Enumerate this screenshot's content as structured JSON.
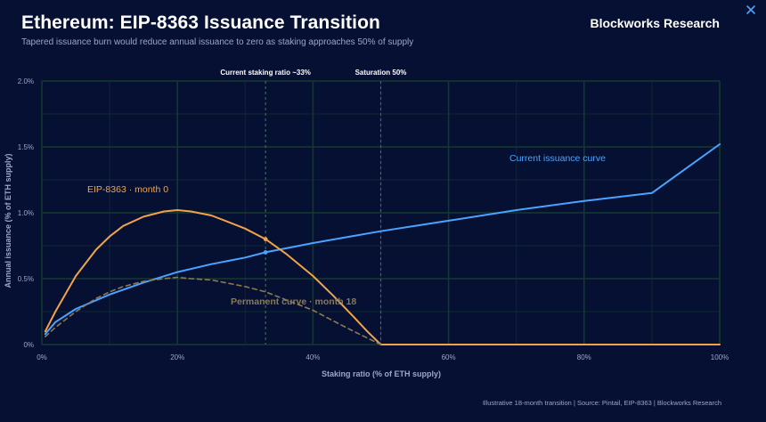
{
  "header": {
    "title": "Ethereum: EIP-8363 Issuance Transition",
    "subtitle": "Tapered issuance burn would reduce annual issuance to zero as staking approaches 50% of supply",
    "brand": "Blockworks Research"
  },
  "footer": {
    "note": "Illustrative 18-month transition | Source: Pintail, EIP-8363 | Blockworks Research"
  },
  "colors": {
    "background": "#061033",
    "grid": "#123a2c",
    "current_curve": "#4aa3ff",
    "eip_month0": "#f2a34a",
    "permanent_curve": "#8a7a52",
    "marker_line": "#3b6b4d"
  },
  "icons": {
    "close": "close-icon"
  },
  "chart_data": {
    "type": "line",
    "xlabel": "Staking ratio (% of ETH supply)",
    "ylabel": "Annual issuance (% of ETH supply)",
    "xlim": [
      0,
      100
    ],
    "ylim": [
      0,
      2.0
    ],
    "x_ticks": [
      0,
      20,
      40,
      60,
      80,
      100
    ],
    "x_tick_labels": [
      "0%",
      "20%",
      "40%",
      "60%",
      "80%",
      "100%"
    ],
    "y_ticks": [
      0,
      0.5,
      1.0,
      1.5,
      2.0
    ],
    "y_tick_labels": [
      "0%",
      "0.5%",
      "1.0%",
      "1.5%",
      "2.0%"
    ],
    "grid": true,
    "vertical_markers": [
      {
        "x": 33,
        "label": "Current staking ratio ~33%"
      },
      {
        "x": 50,
        "label": "Saturation 50%"
      }
    ],
    "series": [
      {
        "name": "Current issuance curve",
        "style": "solid",
        "x": [
          0.5,
          2,
          5,
          10,
          15,
          20,
          25,
          30,
          33,
          40,
          50,
          60,
          70,
          80,
          90,
          100
        ],
        "y": [
          0.08,
          0.17,
          0.27,
          0.38,
          0.47,
          0.55,
          0.61,
          0.66,
          0.7,
          0.77,
          0.86,
          0.94,
          1.02,
          1.09,
          1.15,
          1.52
        ]
      },
      {
        "name": "EIP-8363 · month 0",
        "style": "solid",
        "x": [
          0.5,
          2,
          5,
          8,
          10,
          12,
          15,
          18,
          20,
          22,
          25,
          28,
          30,
          33,
          36,
          40,
          43,
          46,
          48,
          50,
          55,
          60,
          70,
          80,
          90,
          100
        ],
        "y": [
          0.1,
          0.25,
          0.52,
          0.72,
          0.82,
          0.9,
          0.97,
          1.01,
          1.02,
          1.01,
          0.98,
          0.92,
          0.88,
          0.8,
          0.69,
          0.52,
          0.37,
          0.21,
          0.1,
          0.0,
          0.0,
          0.0,
          0.0,
          0.0,
          0.0,
          0.0
        ]
      },
      {
        "name": "Permanent curve · month 18",
        "style": "dashed",
        "x": [
          0.5,
          2,
          5,
          8,
          10,
          12,
          15,
          18,
          20,
          22,
          25,
          28,
          30,
          33,
          36,
          40,
          43,
          46,
          48,
          50
        ],
        "y": [
          0.06,
          0.13,
          0.25,
          0.35,
          0.4,
          0.44,
          0.48,
          0.5,
          0.51,
          0.5,
          0.49,
          0.46,
          0.44,
          0.4,
          0.34,
          0.26,
          0.18,
          0.1,
          0.05,
          0.0
        ]
      }
    ]
  }
}
